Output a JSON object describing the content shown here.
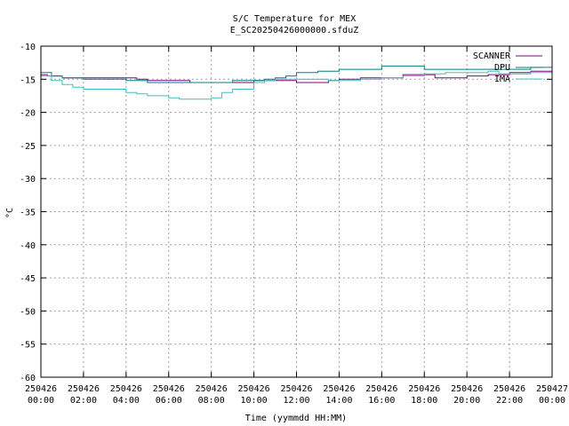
{
  "chart_data": {
    "type": "line",
    "title": "S/C Temperature for MEX",
    "subtitle": "E_SC20250426000000.sfduZ",
    "xlabel": "Time (yymmdd HH:MM)",
    "ylabel": "°C",
    "ylim": [
      -60,
      -10
    ],
    "xlim_hours": [
      0,
      24
    ],
    "grid": true,
    "legend_position": "top-right",
    "y_ticks": [
      "-10",
      "-15",
      "-20",
      "-25",
      "-30",
      "-35",
      "-40",
      "-45",
      "-50",
      "-55",
      "-60"
    ],
    "x_ticks": [
      {
        "date": "250426",
        "time": "00:00"
      },
      {
        "date": "250426",
        "time": "02:00"
      },
      {
        "date": "250426",
        "time": "04:00"
      },
      {
        "date": "250426",
        "time": "06:00"
      },
      {
        "date": "250426",
        "time": "08:00"
      },
      {
        "date": "250426",
        "time": "10:00"
      },
      {
        "date": "250426",
        "time": "12:00"
      },
      {
        "date": "250426",
        "time": "14:00"
      },
      {
        "date": "250426",
        "time": "16:00"
      },
      {
        "date": "250426",
        "time": "18:00"
      },
      {
        "date": "250426",
        "time": "20:00"
      },
      {
        "date": "250426",
        "time": "22:00"
      },
      {
        "date": "250427",
        "time": "00:00"
      }
    ],
    "series": [
      {
        "name": "SCANNER",
        "color": "#800080",
        "x": [
          0,
          0.3,
          1,
          2,
          3,
          4,
          4.5,
          5,
          6,
          7,
          8,
          9,
          10,
          11,
          12,
          12.5,
          13,
          13.5,
          14,
          15,
          16,
          17,
          18,
          18.5,
          19,
          20,
          20.5,
          21,
          22,
          23,
          24
        ],
        "y": [
          -14.3,
          -14.5,
          -14.8,
          -14.8,
          -14.8,
          -14.8,
          -15.0,
          -15.2,
          -15.2,
          -15.5,
          -15.5,
          -15.5,
          -15.2,
          -15.2,
          -15.5,
          -15.5,
          -15.5,
          -15.2,
          -15.0,
          -14.8,
          -14.8,
          -14.3,
          -14.3,
          -14.8,
          -14.8,
          -14.5,
          -14.5,
          -14.3,
          -14.0,
          -13.8,
          -13.5
        ]
      },
      {
        "name": "DPU",
        "color": "#008080",
        "x": [
          0,
          0.5,
          1,
          2,
          3,
          4,
          5,
          6,
          7,
          8,
          9,
          10,
          10.5,
          11,
          11.5,
          12,
          13,
          14,
          15,
          16,
          17,
          18,
          19,
          20,
          21,
          22,
          23,
          24
        ],
        "y": [
          -14.0,
          -14.5,
          -14.8,
          -15.0,
          -15.0,
          -15.2,
          -15.5,
          -15.5,
          -15.5,
          -15.5,
          -15.2,
          -15.2,
          -15.0,
          -14.8,
          -14.5,
          -14.0,
          -13.8,
          -13.5,
          -13.5,
          -13.0,
          -13.0,
          -13.5,
          -13.5,
          -13.5,
          -13.5,
          -13.5,
          -13.2,
          -13.0
        ]
      },
      {
        "name": "IMA",
        "color": "#40c0c0",
        "x": [
          0,
          0.5,
          1,
          1.5,
          2,
          3,
          4,
          4.5,
          5,
          6,
          6.5,
          7,
          8,
          8.5,
          9,
          10,
          10.5,
          11,
          12,
          13,
          13.5,
          14,
          15,
          16,
          17,
          18,
          19,
          20,
          21,
          21.5,
          22,
          23,
          24
        ],
        "y": [
          -14.5,
          -15.2,
          -15.8,
          -16.2,
          -16.5,
          -16.5,
          -17.0,
          -17.2,
          -17.5,
          -17.8,
          -18.0,
          -18.0,
          -17.8,
          -17.0,
          -16.5,
          -15.5,
          -15.2,
          -15.0,
          -15.0,
          -15.0,
          -15.2,
          -15.2,
          -15.0,
          -14.8,
          -14.5,
          -14.2,
          -14.0,
          -14.0,
          -13.8,
          -14.2,
          -14.2,
          -14.0,
          -14.0
        ]
      }
    ]
  }
}
